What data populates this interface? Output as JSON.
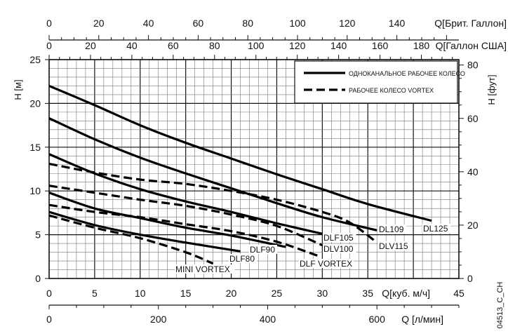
{
  "chart_data": {
    "type": "line",
    "title": "",
    "code": "04513_C_CH",
    "grid": true,
    "legend_placement": "top-right",
    "x_axes": {
      "primary": {
        "label": "Q[куб. м/ч]",
        "range": [
          0,
          45
        ],
        "ticks": [
          0,
          5,
          10,
          15,
          20,
          25,
          30,
          35,
          45
        ],
        "tick_labels": [
          "0",
          "5",
          "10",
          "15",
          "20",
          "25",
          "30",
          "35",
          "45"
        ]
      },
      "lpm": {
        "label": "Q [л/мин]",
        "ticks": [
          0,
          200,
          400,
          600
        ],
        "tick_labels": [
          "0",
          "200",
          "400",
          "600"
        ]
      },
      "uk_gal": {
        "label": "Q[Брит. Галлон]",
        "ticks": [
          0,
          20,
          40,
          60,
          80,
          100,
          120,
          140
        ],
        "tick_labels": [
          "0",
          "20",
          "40",
          "60",
          "80",
          "100",
          "120",
          "140"
        ]
      },
      "us_gal": {
        "label": "Q[Галлон США]",
        "ticks": [
          0,
          20,
          40,
          60,
          80,
          100,
          120,
          140,
          160,
          180
        ],
        "tick_labels": [
          "0",
          "20",
          "40",
          "60",
          "80",
          "100",
          "120",
          "140",
          "160",
          "180"
        ]
      }
    },
    "y_axes": {
      "primary": {
        "label": "H [м]",
        "range": [
          0,
          25
        ],
        "ticks": [
          0,
          5,
          10,
          15,
          20,
          25
        ],
        "tick_labels": [
          "0",
          "5",
          "10",
          "15",
          "20",
          "25"
        ]
      },
      "feet": {
        "label": "H [фут]",
        "ticks": [
          0,
          20,
          40,
          60,
          80
        ],
        "tick_labels": [
          "0",
          "20",
          "40",
          "60",
          "80"
        ]
      }
    },
    "legend": [
      {
        "label": "ОДНОКАНАЛЬНОЕ РАБОЧЕЕ КОЛЕСО",
        "style": "solid"
      },
      {
        "label": "РАБОЧЕЕ КОЛЕСО VORTEX",
        "style": "dashed"
      }
    ],
    "series": [
      {
        "name": "DL125",
        "style": "solid",
        "x": [
          0,
          5,
          10,
          15,
          20,
          25,
          30,
          35,
          42
        ],
        "y": [
          22.0,
          19.8,
          17.5,
          15.5,
          13.7,
          11.9,
          10.2,
          8.5,
          6.6
        ]
      },
      {
        "name": "DL109",
        "style": "solid",
        "x": [
          0,
          5,
          10,
          15,
          20,
          25,
          30,
          36
        ],
        "y": [
          18.3,
          15.9,
          13.8,
          12.0,
          10.3,
          8.6,
          7.0,
          5.5
        ]
      },
      {
        "name": "DLF105",
        "style": "solid",
        "x": [
          0,
          5,
          10,
          15,
          20,
          25,
          30
        ],
        "y": [
          14.2,
          12.0,
          10.2,
          8.8,
          7.6,
          6.3,
          5.1
        ]
      },
      {
        "name": "DLV115",
        "style": "dashed",
        "x": [
          0,
          5,
          10,
          15,
          20,
          25,
          30,
          33,
          36
        ],
        "y": [
          13.1,
          12.1,
          11.3,
          10.8,
          10.0,
          9.0,
          7.6,
          6.4,
          4.1
        ]
      },
      {
        "name": "DLV100",
        "style": "dashed",
        "x": [
          0,
          5,
          10,
          15,
          20,
          25,
          30
        ],
        "y": [
          10.6,
          9.8,
          9.0,
          8.3,
          7.3,
          6.0,
          3.8
        ]
      },
      {
        "name": "DLF90",
        "style": "solid",
        "x": [
          0,
          5,
          10,
          15,
          20,
          26
        ],
        "y": [
          9.8,
          8.0,
          6.9,
          5.8,
          4.9,
          3.6
        ]
      },
      {
        "name": "DLF VORTEX",
        "style": "dashed",
        "x": [
          0,
          5,
          10,
          15,
          20,
          25,
          29.5
        ],
        "y": [
          8.4,
          7.6,
          7.0,
          6.2,
          5.4,
          4.2,
          2.6
        ]
      },
      {
        "name": "DLF80",
        "style": "solid",
        "x": [
          0,
          5,
          10,
          15,
          21
        ],
        "y": [
          7.6,
          6.1,
          5.0,
          4.1,
          3.1
        ]
      },
      {
        "name": "MINI VORTEX",
        "style": "dashed",
        "x": [
          0,
          5,
          10,
          15,
          18
        ],
        "y": [
          7.2,
          5.8,
          4.6,
          3.0,
          1.7
        ]
      }
    ]
  }
}
